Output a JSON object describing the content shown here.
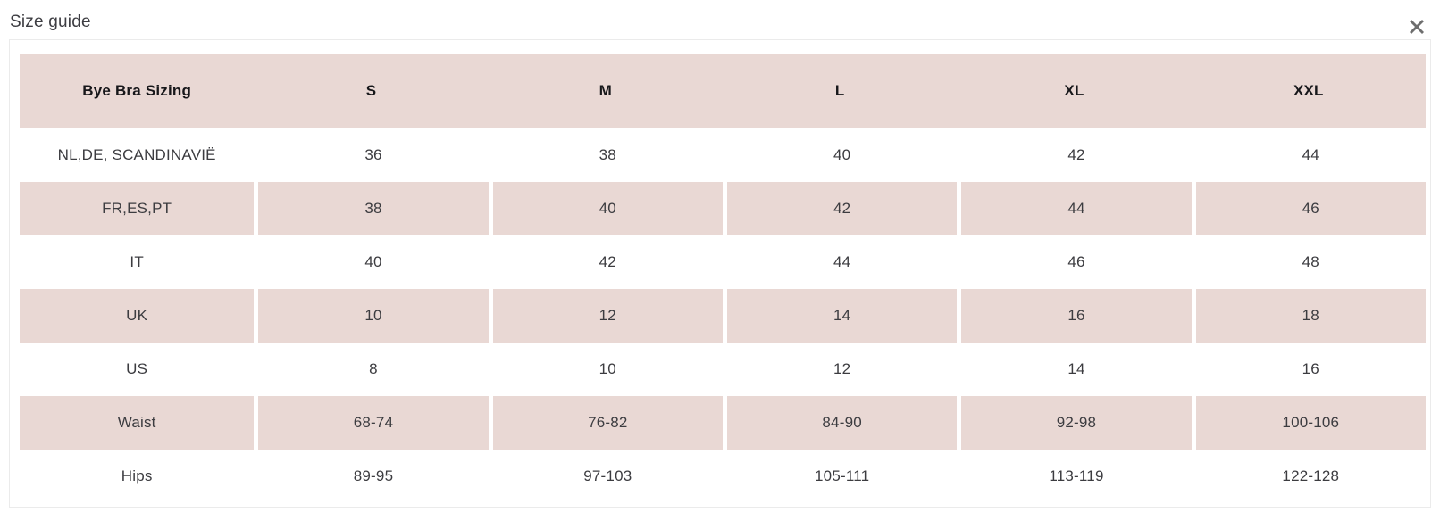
{
  "modal": {
    "title": "Size guide",
    "close_icon": "close-x"
  },
  "table": {
    "columns": [
      "Bye Bra Sizing",
      "S",
      "M",
      "L",
      "XL",
      "XXL"
    ],
    "rows": [
      {
        "label": "NL,DE, SCANDINAVIË",
        "values": [
          "36",
          "38",
          "40",
          "42",
          "44"
        ]
      },
      {
        "label": "FR,ES,PT",
        "values": [
          "38",
          "40",
          "42",
          "44",
          "46"
        ]
      },
      {
        "label": "IT",
        "values": [
          "40",
          "42",
          "44",
          "46",
          "48"
        ]
      },
      {
        "label": "UK",
        "values": [
          "10",
          "12",
          "14",
          "16",
          "18"
        ]
      },
      {
        "label": "US",
        "values": [
          "8",
          "10",
          "12",
          "14",
          "16"
        ]
      },
      {
        "label": "Waist",
        "values": [
          "68-74",
          "76-82",
          "84-90",
          "92-98",
          "100-106"
        ]
      },
      {
        "label": "Hips",
        "values": [
          "89-95",
          "97-103",
          "105-111",
          "113-119",
          "122-128"
        ]
      }
    ]
  },
  "colors": {
    "row_highlight": "#e9d8d4",
    "header_bg": "#e9d8d4",
    "header_text": "#17171a",
    "body_text": "#3c3c40",
    "card_border": "#ebebeb",
    "close_icon": "#6e6e6e"
  }
}
